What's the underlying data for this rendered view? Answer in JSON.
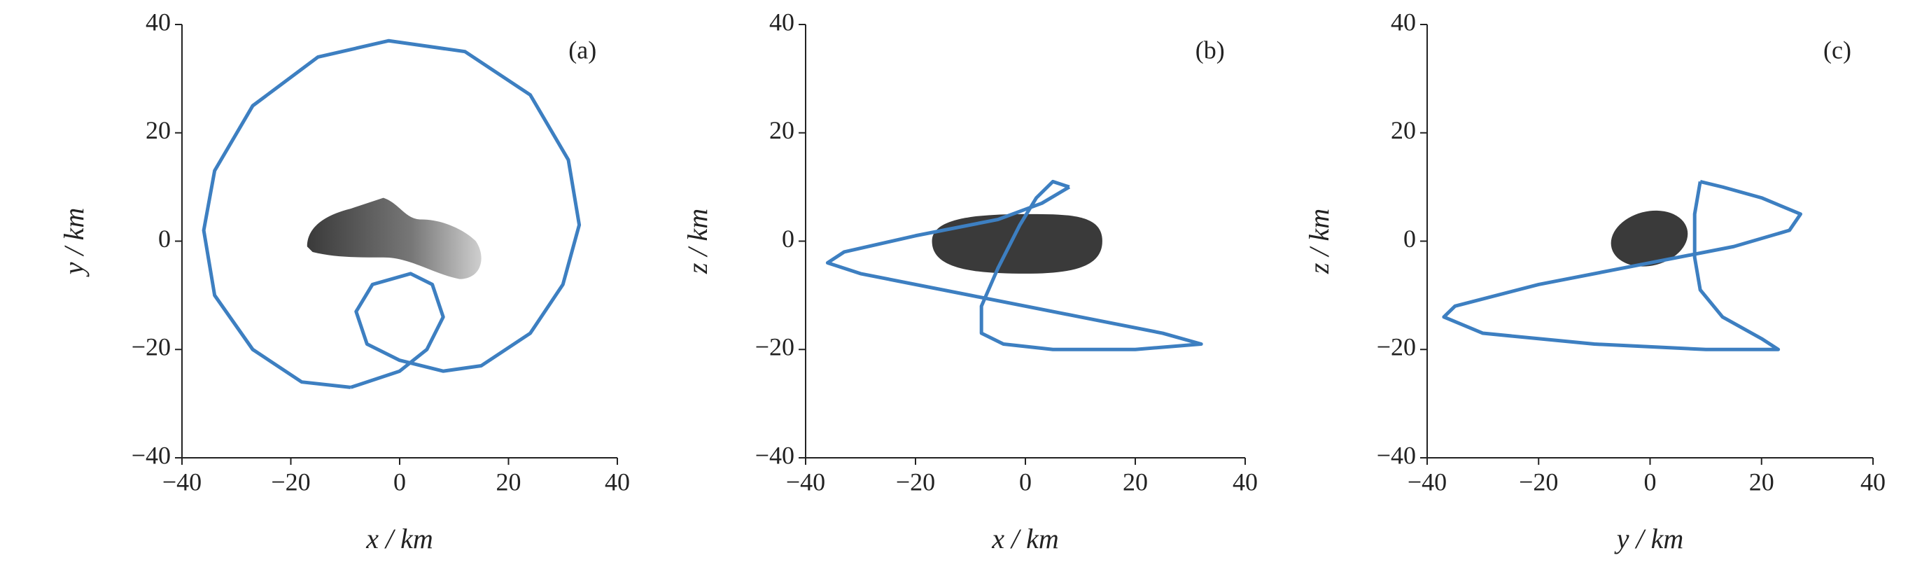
{
  "chart_data": [
    {
      "type": "line",
      "annotation": "(a)",
      "xlabel": "x / km",
      "ylabel": "y / km",
      "x": [
        -9,
        0,
        5,
        8,
        6,
        2,
        -5,
        -8,
        -6,
        0,
        8,
        15,
        24,
        30,
        33,
        31,
        24,
        12,
        -2,
        -15,
        -27,
        -34,
        -36,
        -34,
        -27,
        -18,
        -9
      ],
      "values": [
        -27,
        -24,
        -20,
        -14,
        -8,
        -6,
        -8,
        -13,
        -19,
        -22,
        -24,
        -23,
        -17,
        -8,
        3,
        15,
        27,
        35,
        37,
        34,
        25,
        13,
        2,
        -10,
        -20,
        -26,
        -27
      ],
      "color": "#3d7fc1",
      "xlim": [
        -40,
        40
      ],
      "ylim": [
        -40,
        40
      ],
      "xticks": [
        {
          "value": -40,
          "label": "−40"
        },
        {
          "value": -20,
          "label": "−20"
        },
        0,
        20,
        40
      ],
      "yticks": [
        {
          "value": -40,
          "label": "−40"
        },
        {
          "value": -20,
          "label": "−20"
        },
        0,
        20,
        40
      ]
    },
    {
      "type": "line",
      "annotation": "(b)",
      "xlabel": "x / km",
      "ylabel": "z / km",
      "x": [
        8,
        5,
        2,
        -1,
        -5,
        -8,
        -8,
        -4,
        5,
        20,
        32,
        25,
        10,
        -10,
        -30,
        -36,
        -33,
        -20,
        -5,
        3,
        8
      ],
      "values": [
        10,
        11,
        8,
        3,
        -5,
        -12,
        -17,
        -19,
        -20,
        -20,
        -19,
        -17,
        -14,
        -10,
        -6,
        -4,
        -2,
        1,
        4,
        7,
        10
      ],
      "color": "#3d7fc1",
      "xlim": [
        -40,
        40
      ],
      "ylim": [
        -40,
        40
      ],
      "xticks": [
        {
          "value": -40,
          "label": "−40"
        },
        {
          "value": -20,
          "label": "−20"
        },
        0,
        20,
        40
      ],
      "yticks": [
        {
          "value": -40,
          "label": "−40"
        },
        {
          "value": -20,
          "label": "−20"
        },
        0,
        20,
        40
      ]
    },
    {
      "type": "line",
      "annotation": "(c)",
      "xlabel": "y / km",
      "ylabel": "z / km",
      "x": [
        9,
        13,
        20,
        27,
        25,
        15,
        0,
        -20,
        -35,
        -37,
        -30,
        -10,
        10,
        23,
        20,
        13,
        9,
        8,
        8,
        9
      ],
      "values": [
        11,
        10,
        8,
        5,
        2,
        -1,
        -4,
        -8,
        -12,
        -14,
        -17,
        -19,
        -20,
        -20,
        -18,
        -14,
        -9,
        -3,
        5,
        11
      ],
      "color": "#3d7fc1",
      "xlim": [
        -40,
        40
      ],
      "ylim": [
        -40,
        40
      ],
      "xticks": [
        {
          "value": -40,
          "label": "−40"
        },
        {
          "value": -20,
          "label": "−20"
        },
        0,
        20,
        40
      ],
      "yticks": [
        {
          "value": -40,
          "label": "−40"
        },
        {
          "value": -20,
          "label": "−20"
        },
        0,
        20,
        40
      ]
    }
  ]
}
